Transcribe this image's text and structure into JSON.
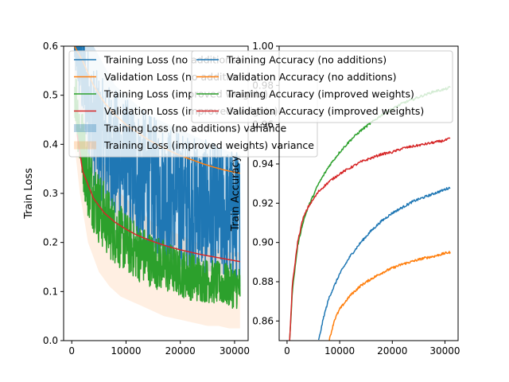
{
  "chart_data": [
    {
      "type": "line",
      "title": "",
      "xlabel": "",
      "ylabel": "Train Loss",
      "xlim": [
        -1500,
        32500
      ],
      "ylim": [
        0.0,
        0.6
      ],
      "xticks": [
        0,
        10000,
        20000,
        30000
      ],
      "xtick_labels": [
        "0",
        "10000",
        "20000",
        "30000"
      ],
      "yticks": [
        0.0,
        0.1,
        0.2,
        0.3,
        0.4,
        0.5,
        0.6
      ],
      "ytick_labels": [
        "0.0",
        "0.1",
        "0.2",
        "0.3",
        "0.4",
        "0.5",
        "0.6"
      ],
      "grid": false,
      "legend_placement": "upper-right",
      "legend": [
        "Training Loss (no additions)",
        "Validation Loss (no additions)",
        "Training Loss (improved weights)",
        "Validation Loss (improved weights)",
        "Training Loss (no additions) variance",
        "Training Loss (improved weights) variance"
      ],
      "series": [
        {
          "name": "Training Loss (no additions)",
          "kind": "noisy-line",
          "color": "#1f77b4",
          "x": [
            500,
            2000,
            4000,
            6000,
            8000,
            10000,
            12000,
            14000,
            16000,
            18000,
            20000,
            22000,
            24000,
            26000,
            28000,
            30000,
            31000
          ],
          "center": [
            0.6,
            0.54,
            0.44,
            0.4,
            0.375,
            0.355,
            0.34,
            0.325,
            0.31,
            0.3,
            0.29,
            0.28,
            0.272,
            0.265,
            0.258,
            0.252,
            0.25
          ],
          "noise": [
            0.05,
            0.1,
            0.12,
            0.13,
            0.14,
            0.14,
            0.14,
            0.14,
            0.14,
            0.14,
            0.14,
            0.14,
            0.14,
            0.14,
            0.14,
            0.14,
            0.14
          ]
        },
        {
          "name": "Validation Loss (no additions)",
          "kind": "line",
          "color": "#ff7f0e",
          "x": [
            500,
            2000,
            4000,
            6000,
            8000,
            10000,
            12000,
            14000,
            16000,
            18000,
            20000,
            22000,
            24000,
            26000,
            28000,
            30000,
            31000
          ],
          "y": [
            0.6,
            0.57,
            0.52,
            0.485,
            0.46,
            0.44,
            0.425,
            0.41,
            0.398,
            0.387,
            0.377,
            0.369,
            0.361,
            0.354,
            0.348,
            0.343,
            0.341
          ]
        },
        {
          "name": "Training Loss (improved weights)",
          "kind": "noisy-line",
          "color": "#2ca02c",
          "x": [
            500,
            1500,
            3000,
            5000,
            7000,
            9000,
            11000,
            13000,
            15000,
            17000,
            19000,
            21000,
            23000,
            25000,
            27000,
            29000,
            31000
          ],
          "center": [
            0.52,
            0.42,
            0.33,
            0.27,
            0.235,
            0.21,
            0.19,
            0.175,
            0.163,
            0.152,
            0.143,
            0.135,
            0.128,
            0.122,
            0.117,
            0.112,
            0.108
          ],
          "noise": [
            0.06,
            0.08,
            0.08,
            0.075,
            0.07,
            0.065,
            0.06,
            0.06,
            0.055,
            0.055,
            0.05,
            0.05,
            0.05,
            0.045,
            0.045,
            0.045,
            0.045
          ]
        },
        {
          "name": "Validation Loss (improved weights)",
          "kind": "line",
          "color": "#d62728",
          "x": [
            1000,
            2000,
            4000,
            6000,
            8000,
            10000,
            12000,
            14000,
            16000,
            18000,
            20000,
            22000,
            24000,
            26000,
            28000,
            30000,
            31000
          ],
          "y": [
            0.42,
            0.345,
            0.29,
            0.26,
            0.241,
            0.227,
            0.215,
            0.206,
            0.198,
            0.191,
            0.185,
            0.18,
            0.175,
            0.171,
            0.167,
            0.163,
            0.161
          ]
        },
        {
          "name": "Training Loss (no additions) variance",
          "kind": "band",
          "color": "#1f77b4",
          "opacity": 0.2,
          "x": [
            500,
            2000,
            4000,
            6000,
            8000,
            10000,
            12000,
            14000,
            16000,
            18000,
            20000,
            22000,
            24000,
            26000,
            28000,
            30000,
            31000
          ],
          "lower": [
            0.5,
            0.36,
            0.28,
            0.25,
            0.22,
            0.2,
            0.19,
            0.18,
            0.17,
            0.16,
            0.155,
            0.15,
            0.145,
            0.14,
            0.135,
            0.13,
            0.13
          ],
          "upper": [
            0.6,
            0.6,
            0.6,
            0.56,
            0.52,
            0.5,
            0.48,
            0.46,
            0.45,
            0.44,
            0.43,
            0.42,
            0.41,
            0.4,
            0.39,
            0.38,
            0.38
          ]
        },
        {
          "name": "Training Loss (improved weights) variance",
          "kind": "band",
          "color": "#ff7f0e",
          "opacity": 0.12,
          "x": [
            500,
            1500,
            3000,
            5000,
            7000,
            9000,
            11000,
            13000,
            15000,
            17000,
            19000,
            21000,
            23000,
            25000,
            27000,
            29000,
            31000
          ],
          "lower": [
            0.4,
            0.3,
            0.2,
            0.14,
            0.11,
            0.09,
            0.08,
            0.07,
            0.06,
            0.05,
            0.045,
            0.04,
            0.035,
            0.03,
            0.03,
            0.025,
            0.025
          ],
          "upper": [
            0.6,
            0.55,
            0.45,
            0.38,
            0.34,
            0.3,
            0.28,
            0.26,
            0.24,
            0.23,
            0.22,
            0.21,
            0.2,
            0.19,
            0.185,
            0.18,
            0.18
          ]
        }
      ]
    },
    {
      "type": "line",
      "title": "",
      "xlabel": "",
      "ylabel": "Train Accuracy",
      "xlim": [
        -1500,
        32500
      ],
      "ylim": [
        0.85,
        1.0
      ],
      "xticks": [
        0,
        10000,
        20000,
        30000
      ],
      "xtick_labels": [
        "0",
        "10000",
        "20000",
        "30000"
      ],
      "yticks": [
        0.86,
        0.88,
        0.9,
        0.92,
        0.94,
        0.96,
        0.98,
        1.0
      ],
      "ytick_labels": [
        "0.86",
        "0.88",
        "0.90",
        "0.92",
        "0.94",
        "0.96",
        "0.98",
        "1.00"
      ],
      "grid": false,
      "legend_placement": "upper-left",
      "legend": [
        "Training Accuracy (no additions)",
        "Validation Accuracy (no additions)",
        "Training Accuracy (improved weights)",
        "Validation Accuracy (improved weights)"
      ],
      "series": [
        {
          "name": "Training Accuracy (no additions)",
          "color": "#1f77b4",
          "x": [
            6000,
            7000,
            8000,
            10000,
            12000,
            14000,
            16000,
            18000,
            20000,
            22000,
            24000,
            26000,
            28000,
            30000,
            31000
          ],
          "y": [
            0.85,
            0.8625,
            0.872,
            0.884,
            0.893,
            0.9,
            0.906,
            0.911,
            0.915,
            0.918,
            0.921,
            0.923,
            0.925,
            0.927,
            0.928
          ]
        },
        {
          "name": "Validation Accuracy (no additions)",
          "color": "#ff7f0e",
          "x": [
            8000,
            9000,
            10000,
            12000,
            14000,
            16000,
            18000,
            20000,
            22000,
            24000,
            26000,
            28000,
            30000,
            31000
          ],
          "y": [
            0.85,
            0.8605,
            0.866,
            0.873,
            0.878,
            0.8815,
            0.8845,
            0.887,
            0.889,
            0.8905,
            0.892,
            0.893,
            0.8945,
            0.895
          ]
        },
        {
          "name": "Training Accuracy (improved weights)",
          "color": "#2ca02c",
          "x": [
            500,
            1000,
            2000,
            3000,
            4000,
            6000,
            8000,
            10000,
            12000,
            14000,
            16000,
            18000,
            20000,
            22000,
            24000,
            26000,
            28000,
            30000,
            31000
          ],
          "y": [
            0.85,
            0.875,
            0.898,
            0.91,
            0.918,
            0.93,
            0.939,
            0.946,
            0.952,
            0.957,
            0.961,
            0.965,
            0.968,
            0.971,
            0.973,
            0.975,
            0.977,
            0.978,
            0.979
          ]
        },
        {
          "name": "Validation Accuracy (improved weights)",
          "color": "#d62728",
          "x": [
            500,
            1000,
            2000,
            3000,
            4000,
            6000,
            8000,
            10000,
            12000,
            14000,
            16000,
            18000,
            20000,
            22000,
            24000,
            26000,
            28000,
            30000,
            31000
          ],
          "y": [
            0.85,
            0.878,
            0.9,
            0.912,
            0.918,
            0.926,
            0.931,
            0.935,
            0.938,
            0.941,
            0.943,
            0.945,
            0.946,
            0.948,
            0.949,
            0.95,
            0.951,
            0.952,
            0.953
          ]
        }
      ]
    }
  ]
}
